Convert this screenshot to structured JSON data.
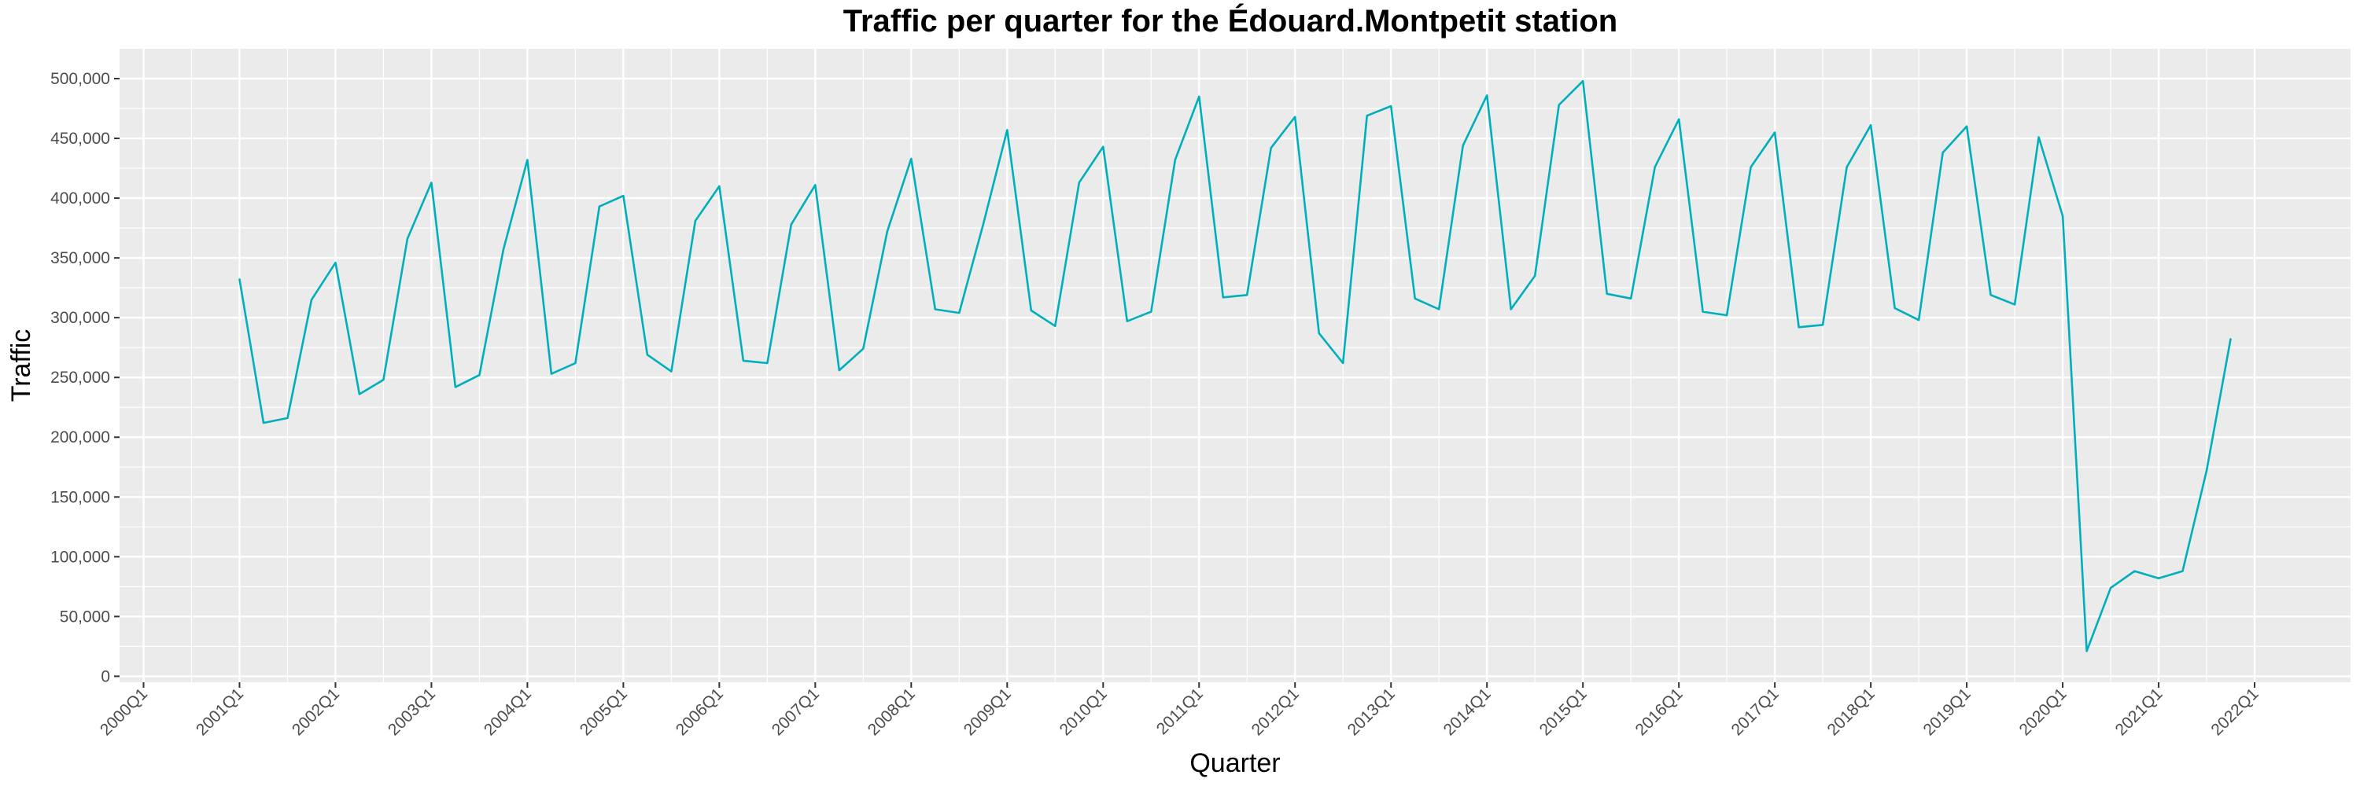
{
  "chart_data": {
    "type": "line",
    "title": "Traffic per quarter for the Édouard.Montpetit station",
    "xlabel": "Quarter",
    "ylabel": "Traffic",
    "x_tick_labels": [
      "2000Q1",
      "2001Q1",
      "2002Q1",
      "2003Q1",
      "2004Q1",
      "2005Q1",
      "2006Q1",
      "2007Q1",
      "2008Q1",
      "2009Q1",
      "2010Q1",
      "2011Q1",
      "2012Q1",
      "2013Q1",
      "2014Q1",
      "2015Q1",
      "2016Q1",
      "2017Q1",
      "2018Q1",
      "2019Q1",
      "2020Q1",
      "2021Q1",
      "2022Q1"
    ],
    "y_tick_labels": [
      "0",
      "50,000",
      "100,000",
      "150,000",
      "200,000",
      "250,000",
      "300,000",
      "350,000",
      "400,000",
      "450,000",
      "500,000"
    ],
    "y_ticks": [
      0,
      50000,
      100000,
      150000,
      200000,
      250000,
      300000,
      350000,
      400000,
      450000,
      500000
    ],
    "ylim": [
      -5000,
      525000
    ],
    "xlim": [
      "2000Q1",
      "2022Q4"
    ],
    "grid": true,
    "colors": {
      "line": "#00AFBB",
      "panel_background": "#EBEBEB",
      "grid": "#FFFFFF"
    },
    "series": [
      {
        "x": [
          "2001Q1",
          "2001Q2",
          "2001Q3",
          "2001Q4",
          "2002Q1",
          "2002Q2",
          "2002Q3",
          "2002Q4",
          "2003Q1",
          "2003Q2",
          "2003Q3",
          "2003Q4",
          "2004Q1",
          "2004Q2",
          "2004Q3",
          "2004Q4",
          "2005Q1",
          "2005Q2",
          "2005Q3",
          "2005Q4",
          "2006Q1",
          "2006Q2",
          "2006Q3",
          "2006Q4",
          "2007Q1",
          "2007Q2",
          "2007Q3",
          "2007Q4",
          "2008Q1",
          "2008Q2",
          "2008Q3",
          "2008Q4",
          "2009Q1",
          "2009Q2",
          "2009Q3",
          "2009Q4",
          "2010Q1",
          "2010Q2",
          "2010Q3",
          "2010Q4",
          "2011Q1",
          "2011Q2",
          "2011Q3",
          "2011Q4",
          "2012Q1",
          "2012Q2",
          "2012Q3",
          "2012Q4",
          "2013Q1",
          "2013Q2",
          "2013Q3",
          "2013Q4",
          "2014Q1",
          "2014Q2",
          "2014Q3",
          "2014Q4",
          "2015Q1",
          "2015Q2",
          "2015Q3",
          "2015Q4",
          "2016Q1",
          "2016Q2",
          "2016Q3",
          "2016Q4",
          "2017Q1",
          "2017Q2",
          "2017Q3",
          "2017Q4",
          "2018Q1",
          "2018Q2",
          "2018Q3",
          "2018Q4",
          "2019Q1",
          "2019Q2",
          "2019Q3",
          "2019Q4",
          "2020Q1",
          "2020Q2",
          "2020Q3",
          "2020Q4",
          "2021Q1",
          "2021Q2",
          "2021Q3",
          "2021Q4"
        ],
        "values": [
          332000,
          212000,
          216000,
          315000,
          346000,
          236000,
          248000,
          366000,
          413000,
          242000,
          252000,
          357000,
          432000,
          253000,
          262000,
          393000,
          402000,
          269000,
          255000,
          381000,
          410000,
          264000,
          262000,
          378000,
          411000,
          256000,
          274000,
          372000,
          433000,
          307000,
          304000,
          378000,
          457000,
          306000,
          293000,
          413000,
          443000,
          297000,
          305000,
          432000,
          485000,
          317000,
          319000,
          442000,
          468000,
          287000,
          262000,
          469000,
          477000,
          316000,
          307000,
          444000,
          486000,
          307000,
          335000,
          478000,
          498000,
          320000,
          316000,
          426000,
          466000,
          305000,
          302000,
          426000,
          455000,
          292000,
          294000,
          426000,
          461000,
          308000,
          298000,
          438000,
          460000,
          319000,
          311000,
          451000,
          385000,
          21000,
          74000,
          88000,
          82000,
          88000,
          172000,
          282000
        ]
      }
    ]
  }
}
